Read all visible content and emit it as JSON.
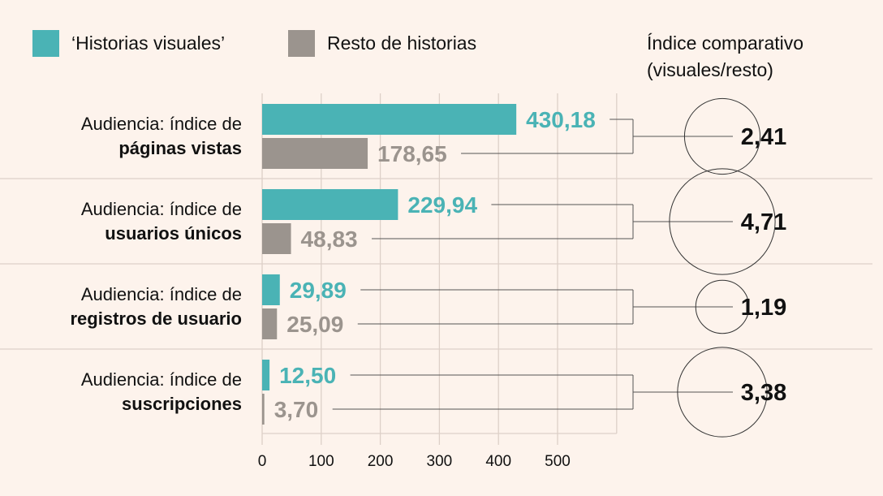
{
  "chart_data": {
    "type": "bar",
    "orientation": "horizontal",
    "legend": [
      {
        "name": "‘Historias visuales’",
        "color": "#4ab3b5"
      },
      {
        "name": "Resto de historias",
        "color": "#9b948e"
      }
    ],
    "legend_placement": "top-left",
    "categories": [
      {
        "line1": "Audiencia: índice de",
        "line2": "páginas vistas"
      },
      {
        "line1": "Audiencia: índice de",
        "line2": "usuarios únicos"
      },
      {
        "line1": "Audiencia: índice de",
        "line2": "registros de usuario"
      },
      {
        "line1": "Audiencia: índice de",
        "line2": "suscripciones"
      }
    ],
    "series": [
      {
        "name": "‘Historias visuales’",
        "values": [
          430.18,
          229.94,
          29.89,
          12.5
        ],
        "labels": [
          "430,18",
          "229,94",
          "29,89",
          "12,50"
        ]
      },
      {
        "name": "Resto de historias",
        "values": [
          178.65,
          48.83,
          25.09,
          3.7
        ],
        "labels": [
          "178,65",
          "48,83",
          "25,09",
          "3,70"
        ]
      }
    ],
    "xlim": [
      0,
      600
    ],
    "xticks": [
      "0",
      "100",
      "200",
      "300",
      "400",
      "500"
    ],
    "xtick_values": [
      0,
      100,
      200,
      300,
      400,
      500
    ],
    "grid": true,
    "ratio": {
      "title_line1": "Índice comparativo",
      "title_line2": "(visuales/resto)",
      "values": [
        2.41,
        4.71,
        1.19,
        3.38
      ],
      "labels": [
        "2,41",
        "4,71",
        "1,19",
        "3,38"
      ]
    }
  }
}
